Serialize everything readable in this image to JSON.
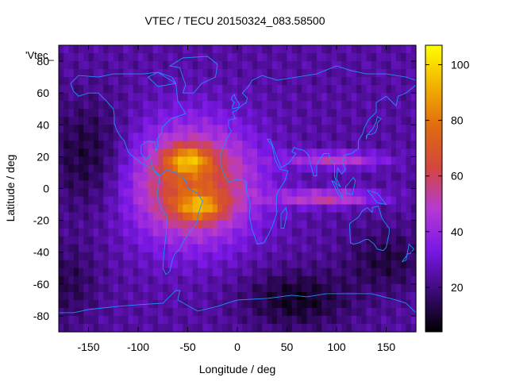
{
  "chart_data": {
    "type": "heatmap",
    "title": "VTEC / TECU 20150324_083.58500",
    "legend_key": "'Vtec_",
    "xlabel": "Longitude / deg",
    "ylabel": "Latitude / deg",
    "xlim": [
      -180,
      180
    ],
    "ylim": [
      -90,
      90
    ],
    "x_ticks": [
      -150,
      -100,
      -50,
      0,
      50,
      100,
      150
    ],
    "y_ticks": [
      -80,
      -60,
      -40,
      -20,
      0,
      20,
      40,
      60,
      80
    ],
    "colorbar": {
      "range": [
        4,
        107
      ],
      "ticks": [
        20,
        40,
        60,
        80,
        100
      ],
      "palette": [
        "#000000",
        "#3d0a78",
        "#7a18e6",
        "#b63ad2",
        "#d2463f",
        "#e06a10",
        "#f2b000",
        "#ffff00"
      ]
    },
    "features": [
      {
        "name": "equatorial anomaly crest north",
        "lon": -50,
        "lat": 18,
        "vtec": 100
      },
      {
        "name": "equatorial anomaly crest south",
        "lon": -40,
        "lat": -12,
        "vtec": 98
      },
      {
        "name": "subsolar daytime region",
        "lon": -40,
        "lat": 0,
        "vtec": 72
      },
      {
        "name": "northern band over Asia",
        "lon": 100,
        "lat": 18,
        "vtec": 55
      },
      {
        "name": "southern band over Indian Ocean",
        "lon": 90,
        "lat": -6,
        "vtec": 58
      },
      {
        "name": "Antarctic night minimum",
        "lon": 55,
        "lat": -65,
        "vtec": 5
      }
    ]
  },
  "coastline_color": "#1e90ff"
}
